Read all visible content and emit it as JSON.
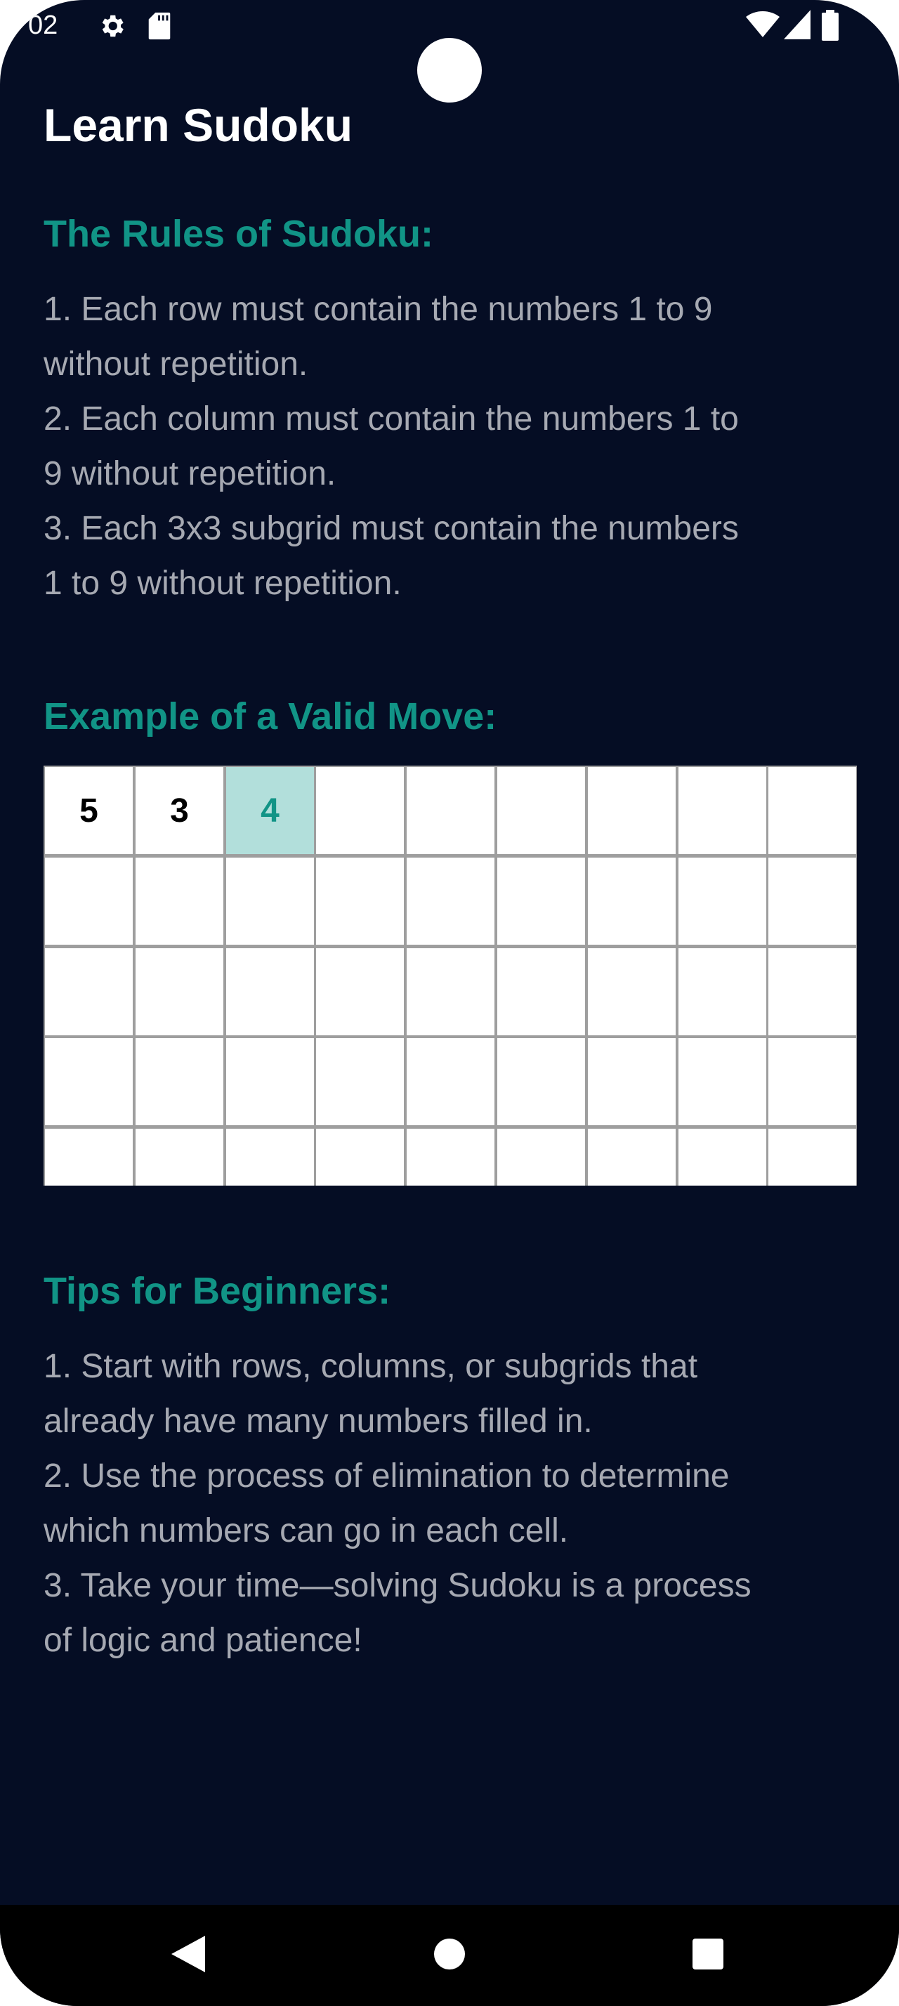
{
  "status_bar": {
    "time": "02",
    "icons": [
      "gear-icon",
      "sd-card-icon",
      "wifi-icon",
      "cell-signal-icon",
      "battery-icon"
    ]
  },
  "app": {
    "title": "Learn Sudoku"
  },
  "rules": {
    "heading": "The Rules of Sudoku:",
    "lines": [
      "1. Each row must contain the numbers 1 to 9",
      "without repetition.",
      "2. Each column must contain the numbers 1 to",
      "9 without repetition.",
      "3. Each 3x3 subgrid must contain the numbers",
      "1 to 9 without repetition."
    ]
  },
  "example": {
    "heading": "Example of a Valid Move:",
    "grid": [
      [
        "5",
        "3",
        "4",
        "",
        "",
        "",
        "",
        "",
        ""
      ],
      [
        "",
        "",
        "",
        "",
        "",
        "",
        "",
        "",
        ""
      ],
      [
        "",
        "",
        "",
        "",
        "",
        "",
        "",
        "",
        ""
      ],
      [
        "",
        "",
        "",
        "",
        "",
        "",
        "",
        "",
        ""
      ],
      [
        "",
        "",
        "",
        "",
        "",
        "",
        "",
        "",
        ""
      ]
    ],
    "highlighted_cell": {
      "row": 1,
      "col": 3
    }
  },
  "tips": {
    "heading": "Tips for Beginners:",
    "lines": [
      "1. Start with rows, columns, or subgrids that",
      "already have many numbers filled in.",
      "2. Use the process of elimination to determine",
      "which numbers can go in each cell.",
      "3. Take your time—solving Sudoku is a process",
      "of logic and patience!"
    ]
  },
  "nav": {
    "buttons": [
      "back-icon",
      "home-icon",
      "recents-icon"
    ]
  },
  "colors": {
    "background": "#050d24",
    "accent": "#119486",
    "body_text": "#a6a9b2",
    "highlight_cell": "#b2dfdb"
  }
}
